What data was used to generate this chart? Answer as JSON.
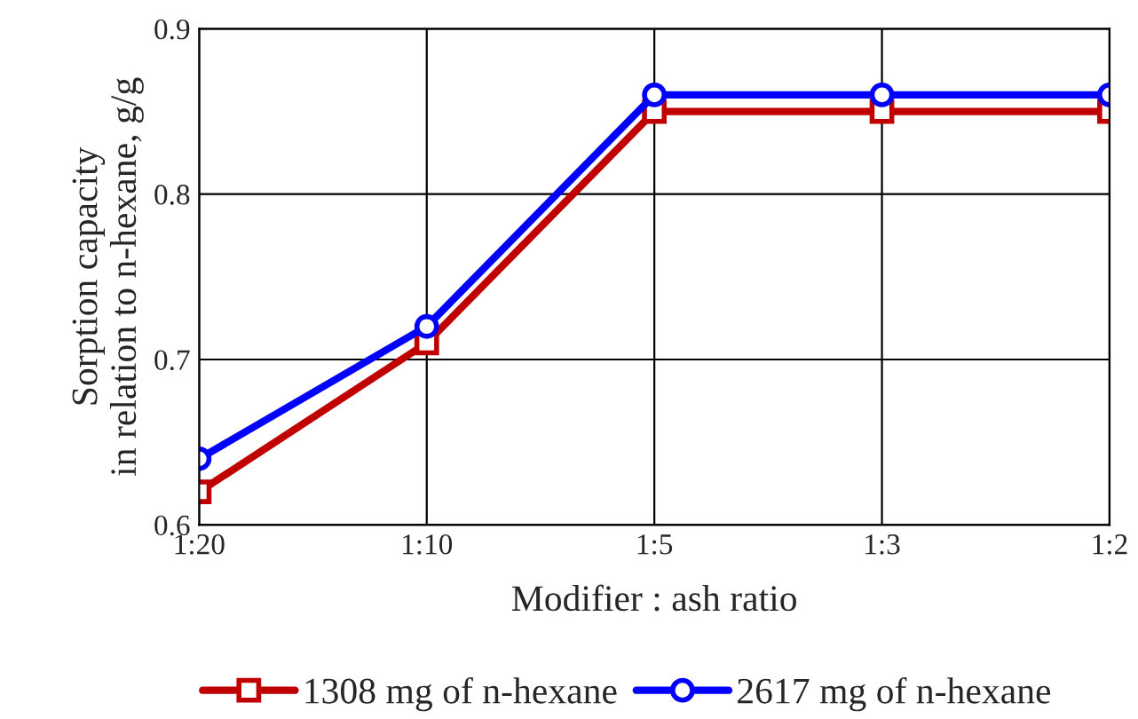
{
  "chart_data": {
    "type": "line",
    "xlabel": "Modifier : ash ratio",
    "ylabel": "Sorption capacity\nin relation to n-hexane, g/g",
    "categories": [
      "1:20",
      "1:10",
      "1:5",
      "1:3",
      "1:2"
    ],
    "series": [
      {
        "name": "1308 mg of n-hexane",
        "color": "#c00000",
        "marker": "square",
        "values": [
          0.62,
          0.71,
          0.85,
          0.85,
          0.85
        ]
      },
      {
        "name": "2617 mg of n-hexane",
        "color": "#0000ff",
        "marker": "circle",
        "values": [
          0.64,
          0.72,
          0.86,
          0.86,
          0.86
        ]
      }
    ],
    "ylim": [
      0.6,
      0.9
    ],
    "yticks": [
      0.6,
      0.7,
      0.8,
      0.9
    ],
    "grid": true,
    "legend": "bottom",
    "line_style": "solid"
  }
}
